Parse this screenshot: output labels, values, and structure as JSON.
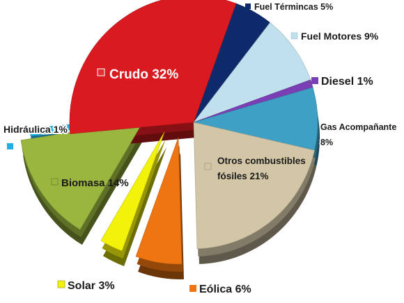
{
  "chart_data": {
    "type": "pie",
    "style": "3d-exploded",
    "title": "",
    "slices": [
      {
        "key": "fuel-terminicas",
        "label": "Fuel Términcas 5%",
        "value": 5,
        "color": "#0f2a6b"
      },
      {
        "key": "fuel-motores",
        "label": "Fuel Motores 9%",
        "value": 9,
        "color": "#bfe0ec"
      },
      {
        "key": "diesel",
        "label": "Diesel 1%",
        "value": 1,
        "color": "#7b3fb5"
      },
      {
        "key": "gas-acompanante",
        "label": "Gas Acompañante 8%",
        "value": 8,
        "color": "#3fa0c5"
      },
      {
        "key": "otros-combustibles",
        "label": "Otros combustibles fósiles 21%",
        "value": 21,
        "color": "#d2c6a6"
      },
      {
        "key": "eolica",
        "label": "Eólica 6%",
        "value": 6,
        "color": "#ee7512"
      },
      {
        "key": "solar",
        "label": "Solar 3%",
        "value": 3,
        "color": "#f3f20b"
      },
      {
        "key": "biomasa",
        "label": "Biomasa 14%",
        "value": 14,
        "color": "#9ab63e"
      },
      {
        "key": "hidraulica",
        "label": "Hidráulica 1%",
        "value": 1,
        "color": "#1eb0e6"
      },
      {
        "key": "crudo",
        "label": "Crudo 32%",
        "value": 32,
        "color": "#d91a20"
      }
    ]
  }
}
